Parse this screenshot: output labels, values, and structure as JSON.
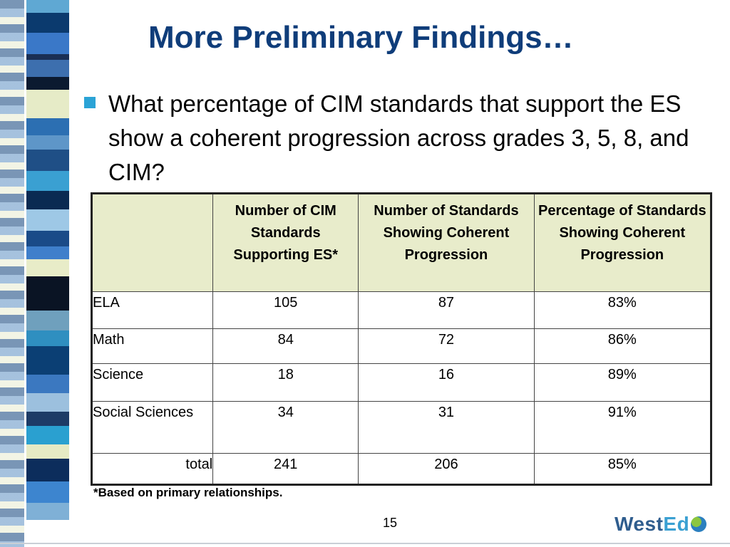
{
  "slide": {
    "title": "More Preliminary Findings…",
    "bullet": "What percentage of CIM standards that support the ES show a coherent progression across grades 3, 5, 8, and CIM?",
    "footnote": "*Based on primary relationships.",
    "page_number": "15",
    "logo": {
      "text_left": "West",
      "text_right": "Ed"
    }
  },
  "table": {
    "headers": [
      "",
      "Number of CIM Standards Supporting ES*",
      "Number of Standards Showing Coherent Progression",
      "Percentage of Standards Showing Coherent Progression"
    ],
    "rows": [
      {
        "subject": "ELA",
        "supporting": "105",
        "coherent": "87",
        "percent": "83%"
      },
      {
        "subject": "Math",
        "supporting": "84",
        "coherent": "72",
        "percent": "86%"
      },
      {
        "subject": "Science",
        "supporting": "18",
        "coherent": "16",
        "percent": "89%"
      },
      {
        "subject": "Social Sciences",
        "supporting": "34",
        "coherent": "31",
        "percent": "91%"
      },
      {
        "subject": "total",
        "supporting": "241",
        "coherent": "206",
        "percent": "85%"
      }
    ]
  },
  "colors": {
    "title": "#0f3d7a",
    "bullet": "#2ba3d6",
    "header_bg": "#e8eccb"
  },
  "icons": {
    "logo_globe": "globe-icon"
  }
}
